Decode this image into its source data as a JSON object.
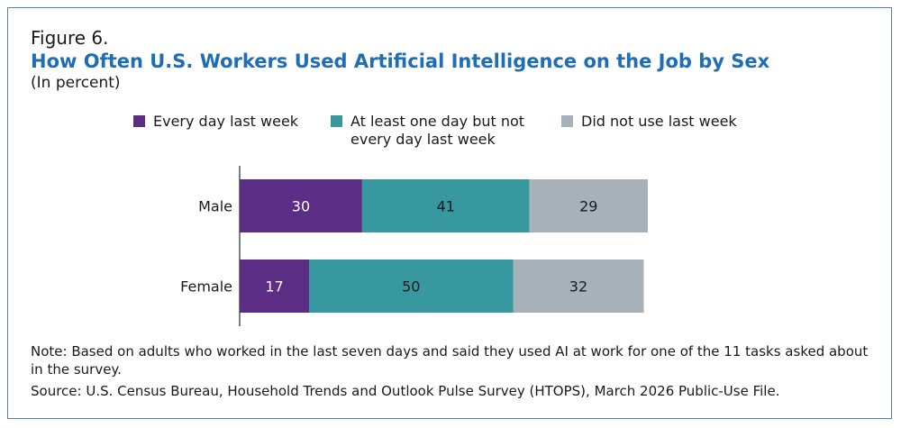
{
  "figure_label": "Figure 6.",
  "title": "How Often U.S. Workers Used Artificial Intelligence on the Job by Sex",
  "subtitle": "(In percent)",
  "legend": [
    {
      "label_lines": [
        "Every day last week"
      ],
      "color": "#5c2d84"
    },
    {
      "label_lines": [
        "At least one day but not",
        "every day last week"
      ],
      "color": "#37989f"
    },
    {
      "label_lines": [
        "Did not use last week"
      ],
      "color": "#a6b1b9"
    }
  ],
  "chart_data": {
    "type": "bar",
    "orientation": "horizontal",
    "stacked": true,
    "categories": [
      "Male",
      "Female"
    ],
    "series": [
      {
        "name": "Every day last week",
        "values": [
          30,
          17
        ],
        "color": "#5c2d84",
        "label_color": "#ffffff"
      },
      {
        "name": "At least one day but not every day last week",
        "values": [
          41,
          50
        ],
        "color": "#37989f",
        "label_color": "#1a1a1a"
      },
      {
        "name": "Did not use last week",
        "values": [
          29,
          32
        ],
        "color": "#a6b1b9",
        "label_color": "#1a1a1a"
      }
    ],
    "xlim": [
      0,
      100
    ],
    "grid": false
  },
  "note": "Note: Based on adults who worked in the last seven days and said they used AI at work for one of the 11 tasks asked about in the survey.",
  "source": "Source: U.S. Census Bureau, Household Trends and Outlook Pulse Survey (HTOPS), March 2026 Public-Use File."
}
